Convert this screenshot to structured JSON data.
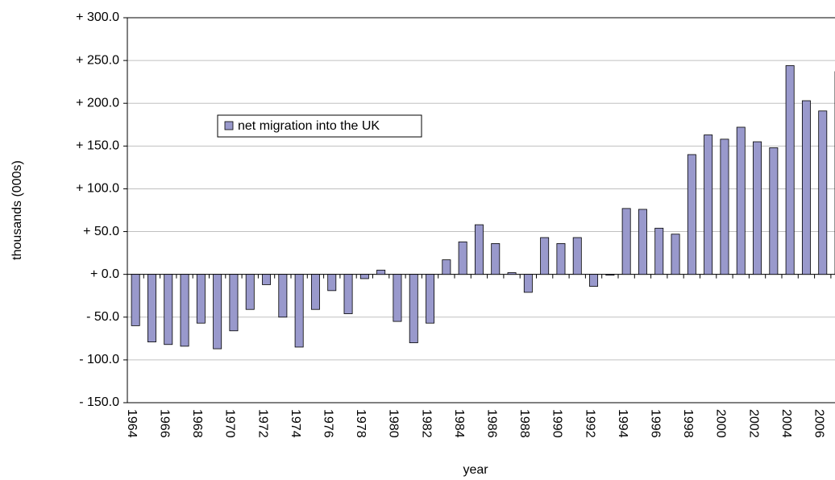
{
  "chart_data": {
    "type": "bar",
    "x_label": "year",
    "y_label": "thousands  (000s)",
    "categories": [
      "1964",
      null,
      "1966",
      null,
      "1968",
      null,
      "1970",
      null,
      "1972",
      null,
      "1974",
      null,
      "1976",
      null,
      "1978",
      null,
      "1980",
      null,
      "1982",
      null,
      "1984",
      null,
      "1986",
      null,
      "1988",
      null,
      "1990",
      null,
      "1992",
      null,
      "1994",
      null,
      "1996",
      null,
      "1998",
      null,
      "2000",
      null,
      "2002",
      null,
      "2004",
      null,
      "2006",
      null
    ],
    "series": [
      {
        "name": "net migration into the UK",
        "color": "#9999cc",
        "values": [
          -60,
          -79,
          -82,
          -84,
          -57,
          -87,
          -66,
          -41,
          -12,
          -50,
          -85,
          -41,
          -19,
          -46,
          -5,
          5,
          -55,
          -80,
          -57,
          17,
          38,
          58,
          36,
          2,
          -21,
          43,
          36,
          43,
          -14,
          -1,
          77,
          76,
          54,
          47,
          140,
          163,
          158,
          172,
          155,
          148,
          244,
          203,
          191,
          237
        ]
      }
    ],
    "ylim": [
      -150,
      300
    ],
    "yticks": [
      {
        "value": -150,
        "label": "- 150.0"
      },
      {
        "value": -100,
        "label": "- 100.0"
      },
      {
        "value": -50,
        "label": "- 50.0"
      },
      {
        "value": 0,
        "label": "+ 0.0"
      },
      {
        "value": 50,
        "label": "+ 50.0"
      },
      {
        "value": 100,
        "label": "+ 100.0"
      },
      {
        "value": 150,
        "label": "+ 150.0"
      },
      {
        "value": 200,
        "label": "+ 200.0"
      },
      {
        "value": 250,
        "label": "+ 250.0"
      },
      {
        "value": 300,
        "label": "+ 300.0"
      }
    ],
    "grid": true,
    "legend": "upper left"
  }
}
